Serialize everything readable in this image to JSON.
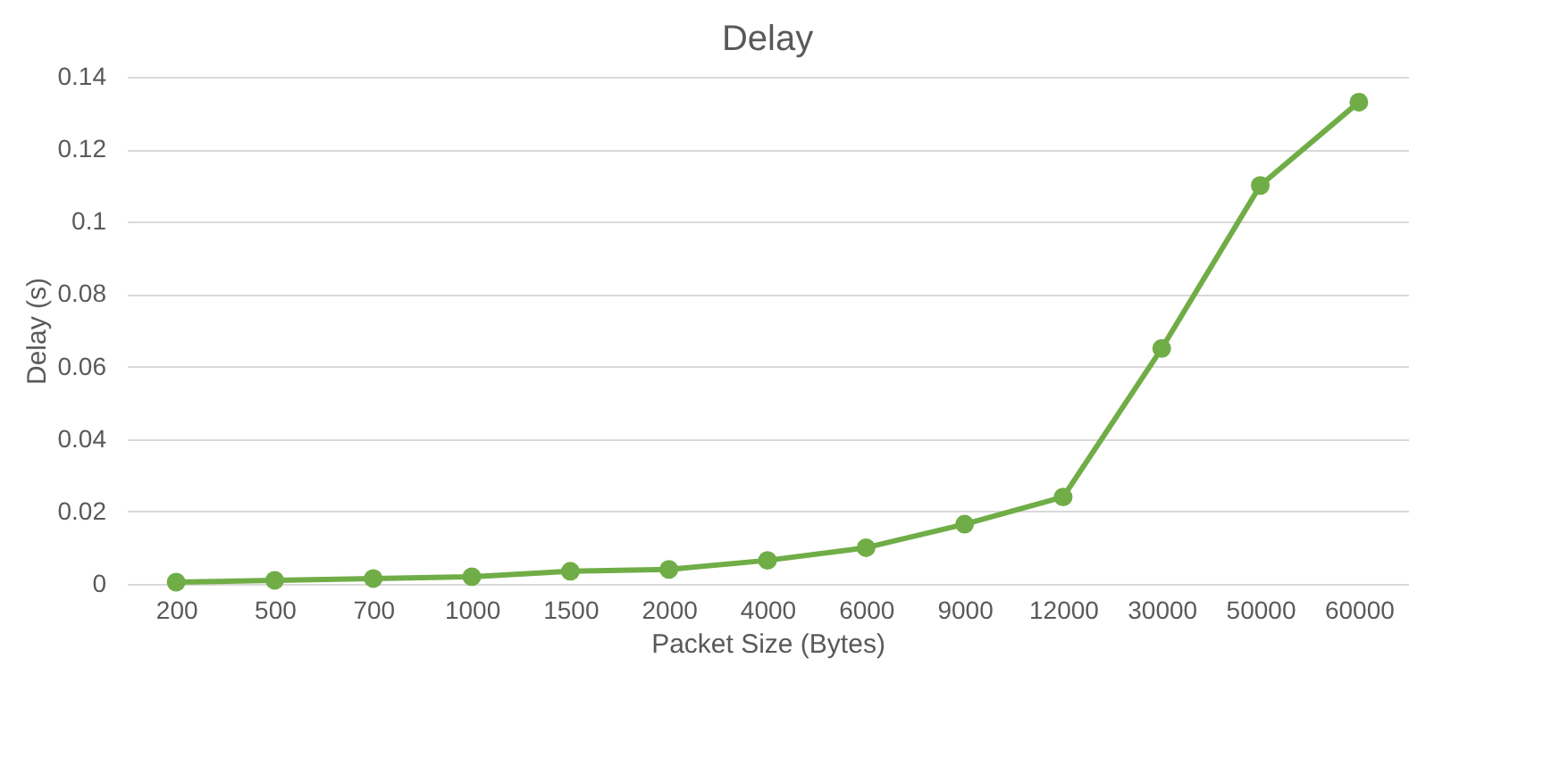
{
  "chart_data": {
    "type": "line",
    "title": "Delay",
    "xlabel": "Packet Size (Bytes)",
    "ylabel": "Delay  (s)",
    "categories": [
      "200",
      "500",
      "700",
      "1000",
      "1500",
      "2000",
      "4000",
      "6000",
      "9000",
      "12000",
      "30000",
      "50000",
      "60000"
    ],
    "series": [
      {
        "color": "#70ad47",
        "values": [
          0.0005,
          0.001,
          0.0015,
          0.002,
          0.0035,
          0.004,
          0.0065,
          0.01,
          0.0165,
          0.024,
          0.065,
          0.11,
          0.133
        ]
      }
    ],
    "ylim": [
      0,
      0.14
    ],
    "yticks": [
      0,
      0.02,
      0.04,
      0.06,
      0.08,
      0.1,
      0.12,
      0.14
    ],
    "grid": "y",
    "marker": "circle",
    "legend": false
  }
}
